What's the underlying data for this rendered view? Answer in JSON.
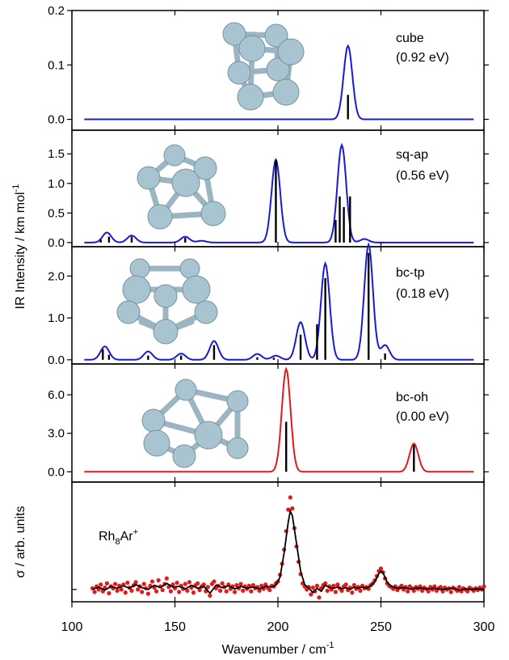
{
  "chart_data": {
    "type": "line",
    "xlabel": "Wavenumber / cm",
    "xlabel_sup": "-1",
    "ylabel_ir": "IR Intensity / km mol",
    "ylabel_ir_sup": "-1",
    "ylabel_exp": "σ / arb. units",
    "xlim": [
      100,
      300
    ],
    "xticks": [
      "100",
      "150",
      "200",
      "250",
      "300"
    ],
    "xtick_values": [
      100,
      150,
      200,
      250,
      300
    ],
    "colors": {
      "calc_blue": "#1a1ad6",
      "calc_red": "#e11a1a",
      "stick": "#000000",
      "exp_points": "#e11a1a",
      "exp_line": "#000000",
      "atom": "#a8c4d0",
      "bond": "#a8c4d0"
    },
    "panels": [
      {
        "id": "cube",
        "label": "cube",
        "energy": "(0.92 eV)",
        "color": "calc_blue",
        "ylim": [
          -0.02,
          0.2
        ],
        "yticks": [
          "0.0",
          "0.1",
          "0.2"
        ],
        "ytick_values": [
          0,
          0.1,
          0.2
        ],
        "sticks": [
          [
            234,
            0.045
          ]
        ],
        "spectrum_fwhm": 5,
        "spectrum_peaks": [
          [
            234,
            0.135
          ]
        ]
      },
      {
        "id": "sq-ap",
        "label": "sq-ap",
        "energy": "(0.56 eV)",
        "color": "calc_blue",
        "ylim": [
          -0.07,
          1.9
        ],
        "yticks": [
          "0.0",
          "0.5",
          "1.0",
          "1.5"
        ],
        "ytick_values": [
          0,
          0.5,
          1.0,
          1.5
        ],
        "sticks": [
          [
            114,
            0.05
          ],
          [
            118,
            0.1
          ],
          [
            129,
            0.1
          ],
          [
            155,
            0.08
          ],
          [
            199,
            1.4
          ],
          [
            228,
            0.38
          ],
          [
            230,
            0.78
          ],
          [
            232,
            0.6
          ],
          [
            235,
            0.78
          ]
        ],
        "spectrum_fwhm": 5,
        "spectrum_peaks": [
          [
            117,
            0.17
          ],
          [
            129,
            0.12
          ],
          [
            155,
            0.1
          ],
          [
            163,
            0.03
          ],
          [
            199,
            1.4
          ],
          [
            231,
            1.65
          ],
          [
            242,
            0.06
          ]
        ]
      },
      {
        "id": "bc-tp",
        "label": "bc-tp",
        "energy": "(0.18 eV)",
        "color": "calc_blue",
        "ylim": [
          -0.1,
          2.7
        ],
        "yticks": [
          "0.0",
          "1.0",
          "2.0"
        ],
        "ytick_values": [
          0,
          1.0,
          2.0
        ],
        "sticks": [
          [
            115,
            0.25
          ],
          [
            118,
            0.12
          ],
          [
            137,
            0.1
          ],
          [
            153,
            0.1
          ],
          [
            169,
            0.35
          ],
          [
            190,
            0.06
          ],
          [
            198,
            0.05
          ],
          [
            211,
            0.6
          ],
          [
            219,
            0.85
          ],
          [
            223,
            1.95
          ],
          [
            244,
            2.55
          ],
          [
            252,
            0.15
          ]
        ],
        "spectrum_fwhm": 5,
        "spectrum_peaks": [
          [
            116,
            0.32
          ],
          [
            137,
            0.2
          ],
          [
            153,
            0.15
          ],
          [
            169,
            0.45
          ],
          [
            190,
            0.14
          ],
          [
            199,
            0.1
          ],
          [
            211,
            0.9
          ],
          [
            223,
            2.3
          ],
          [
            244,
            2.75
          ],
          [
            252,
            0.35
          ]
        ]
      },
      {
        "id": "bc-oh",
        "label": "bc-oh",
        "energy": "(0.00 eV)",
        "color": "calc_red",
        "ylim": [
          -0.8,
          8.4
        ],
        "yticks": [
          "0.0",
          "3.0",
          "6.0"
        ],
        "ytick_values": [
          0,
          3.0,
          6.0
        ],
        "sticks": [
          [
            204,
            3.9
          ],
          [
            266,
            2.1
          ]
        ],
        "spectrum_fwhm": 5,
        "spectrum_peaks": [
          [
            204,
            8.0
          ],
          [
            266,
            2.2
          ]
        ]
      }
    ],
    "experiment": {
      "label_main": "Rh",
      "label_sub": "8",
      "label_mid": "Ar",
      "label_sup": "+",
      "ylim": [
        -0.2,
        1.75
      ],
      "baseline": 0,
      "line_points": [
        [
          110,
          0.0
        ],
        [
          113,
          0.04
        ],
        [
          116,
          -0.01
        ],
        [
          119,
          0.05
        ],
        [
          122,
          0.02
        ],
        [
          125,
          0.06
        ],
        [
          128,
          0.02
        ],
        [
          131,
          0.08
        ],
        [
          134,
          0.03
        ],
        [
          137,
          0.0
        ],
        [
          140,
          0.07
        ],
        [
          143,
          0.03
        ],
        [
          146,
          0.1
        ],
        [
          149,
          0.04
        ],
        [
          152,
          0.05
        ],
        [
          155,
          0.01
        ],
        [
          158,
          0.07
        ],
        [
          161,
          0.02
        ],
        [
          164,
          0.05
        ],
        [
          167,
          -0.06
        ],
        [
          170,
          0.07
        ],
        [
          173,
          0.03
        ],
        [
          176,
          0.06
        ],
        [
          179,
          0.01
        ],
        [
          182,
          0.05
        ],
        [
          185,
          0.02
        ],
        [
          188,
          0.04
        ],
        [
          191,
          0.01
        ],
        [
          194,
          0.05
        ],
        [
          197,
          0.04
        ],
        [
          199,
          0.07
        ],
        [
          201,
          0.2
        ],
        [
          203,
          0.6
        ],
        [
          205,
          1.1
        ],
        [
          206,
          1.28
        ],
        [
          207,
          1.2
        ],
        [
          209,
          0.75
        ],
        [
          211,
          0.3
        ],
        [
          213,
          0.08
        ],
        [
          215,
          0.02
        ],
        [
          217,
          -0.05
        ],
        [
          219,
          0.02
        ],
        [
          221,
          -0.03
        ],
        [
          223,
          0.07
        ],
        [
          225,
          0.03
        ],
        [
          227,
          0.02
        ],
        [
          229,
          0.04
        ],
        [
          231,
          0.01
        ],
        [
          233,
          0.03
        ],
        [
          235,
          0.0
        ],
        [
          237,
          0.04
        ],
        [
          239,
          0.02
        ],
        [
          241,
          0.04
        ],
        [
          243,
          0.02
        ],
        [
          245,
          0.06
        ],
        [
          247,
          0.12
        ],
        [
          249,
          0.26
        ],
        [
          250,
          0.3
        ],
        [
          251,
          0.27
        ],
        [
          253,
          0.12
        ],
        [
          255,
          0.05
        ],
        [
          258,
          0.02
        ],
        [
          261,
          0.03
        ],
        [
          264,
          0.01
        ],
        [
          267,
          0.02
        ],
        [
          270,
          0.02
        ],
        [
          273,
          0.01
        ],
        [
          276,
          0.02
        ],
        [
          279,
          0.0
        ],
        [
          282,
          0.01
        ],
        [
          285,
          0.02
        ],
        [
          288,
          -0.01
        ],
        [
          291,
          0.01
        ],
        [
          294,
          0.0
        ],
        [
          297,
          0.01
        ],
        [
          300,
          0.0
        ]
      ],
      "points": [
        [
          110,
          0.02
        ],
        [
          111,
          -0.04
        ],
        [
          112,
          0.05
        ],
        [
          113,
          0.0
        ],
        [
          114,
          0.08
        ],
        [
          115,
          -0.03
        ],
        [
          116,
          0.03
        ],
        [
          117,
          0.1
        ],
        [
          118,
          -0.06
        ],
        [
          119,
          0.05
        ],
        [
          120,
          0.02
        ],
        [
          121,
          0.09
        ],
        [
          122,
          -0.02
        ],
        [
          123,
          0.06
        ],
        [
          124,
          0.0
        ],
        [
          125,
          0.08
        ],
        [
          126,
          -0.05
        ],
        [
          127,
          0.11
        ],
        [
          128,
          0.03
        ],
        [
          129,
          -0.02
        ],
        [
          130,
          0.07
        ],
        [
          131,
          0.12
        ],
        [
          132,
          0.0
        ],
        [
          133,
          0.05
        ],
        [
          134,
          -0.04
        ],
        [
          135,
          0.09
        ],
        [
          136,
          0.02
        ],
        [
          137,
          -0.07
        ],
        [
          138,
          0.06
        ],
        [
          139,
          0.13
        ],
        [
          140,
          0.03
        ],
        [
          141,
          -0.03
        ],
        [
          142,
          0.15
        ],
        [
          143,
          0.05
        ],
        [
          144,
          -0.01
        ],
        [
          145,
          0.09
        ],
        [
          146,
          0.18
        ],
        [
          147,
          0.04
        ],
        [
          148,
          -0.03
        ],
        [
          149,
          0.08
        ],
        [
          150,
          0.02
        ],
        [
          151,
          0.11
        ],
        [
          152,
          -0.04
        ],
        [
          153,
          0.06
        ],
        [
          154,
          0.01
        ],
        [
          155,
          0.09
        ],
        [
          156,
          -0.02
        ],
        [
          157,
          0.12
        ],
        [
          158,
          0.03
        ],
        [
          159,
          -0.05
        ],
        [
          160,
          0.07
        ],
        [
          161,
          0.1
        ],
        [
          162,
          -0.01
        ],
        [
          163,
          0.05
        ],
        [
          164,
          0.08
        ],
        [
          165,
          -0.03
        ],
        [
          166,
          0.04
        ],
        [
          167,
          -0.1
        ],
        [
          168,
          0.09
        ],
        [
          169,
          0.13
        ],
        [
          170,
          0.02
        ],
        [
          171,
          0.06
        ],
        [
          172,
          -0.02
        ],
        [
          173,
          0.1
        ],
        [
          174,
          0.04
        ],
        [
          175,
          -0.03
        ],
        [
          176,
          0.08
        ],
        [
          177,
          0.01
        ],
        [
          178,
          0.05
        ],
        [
          179,
          -0.04
        ],
        [
          180,
          0.07
        ],
        [
          181,
          0.02
        ],
        [
          182,
          0.09
        ],
        [
          183,
          -0.02
        ],
        [
          184,
          0.05
        ],
        [
          185,
          0.01
        ],
        [
          186,
          0.06
        ],
        [
          187,
          -0.03
        ],
        [
          188,
          0.07
        ],
        [
          189,
          0.02
        ],
        [
          190,
          0.04
        ],
        [
          191,
          -0.02
        ],
        [
          192,
          0.06
        ],
        [
          193,
          0.01
        ],
        [
          194,
          0.08
        ],
        [
          195,
          0.03
        ],
        [
          196,
          -0.01
        ],
        [
          197,
          0.06
        ],
        [
          198,
          0.05
        ],
        [
          199,
          0.1
        ],
        [
          200,
          0.13
        ],
        [
          201,
          0.24
        ],
        [
          202,
          0.42
        ],
        [
          203,
          0.65
        ],
        [
          204,
          0.95
        ],
        [
          205,
          1.3
        ],
        [
          206,
          1.5
        ],
        [
          207,
          1.32
        ],
        [
          208,
          1.0
        ],
        [
          209,
          0.7
        ],
        [
          210,
          0.45
        ],
        [
          211,
          0.25
        ],
        [
          212,
          0.1
        ],
        [
          213,
          0.05
        ],
        [
          214,
          0.0
        ],
        [
          215,
          0.04
        ],
        [
          216,
          -0.08
        ],
        [
          217,
          0.03
        ],
        [
          218,
          -0.03
        ],
        [
          219,
          0.06
        ],
        [
          220,
          -0.13
        ],
        [
          221,
          0.02
        ],
        [
          222,
          0.07
        ],
        [
          223,
          0.1
        ],
        [
          224,
          -0.02
        ],
        [
          225,
          0.05
        ],
        [
          226,
          0.0
        ],
        [
          227,
          0.06
        ],
        [
          228,
          -0.04
        ],
        [
          229,
          0.08
        ],
        [
          230,
          0.02
        ],
        [
          231,
          -0.02
        ],
        [
          232,
          0.05
        ],
        [
          233,
          0.08
        ],
        [
          234,
          -0.01
        ],
        [
          235,
          0.03
        ],
        [
          236,
          -0.05
        ],
        [
          237,
          0.07
        ],
        [
          238,
          0.01
        ],
        [
          239,
          0.04
        ],
        [
          240,
          -0.02
        ],
        [
          241,
          0.06
        ],
        [
          242,
          0.02
        ],
        [
          243,
          0.04
        ],
        [
          244,
          0.01
        ],
        [
          245,
          0.07
        ],
        [
          246,
          0.1
        ],
        [
          247,
          0.15
        ],
        [
          248,
          0.22
        ],
        [
          249,
          0.3
        ],
        [
          250,
          0.34
        ],
        [
          251,
          0.28
        ],
        [
          252,
          0.18
        ],
        [
          253,
          0.1
        ],
        [
          254,
          0.06
        ],
        [
          255,
          0.04
        ],
        [
          256,
          0.01
        ],
        [
          257,
          0.05
        ],
        [
          258,
          -0.01
        ],
        [
          259,
          0.03
        ],
        [
          260,
          0.06
        ],
        [
          261,
          0.0
        ],
        [
          262,
          0.04
        ],
        [
          263,
          -0.03
        ],
        [
          264,
          0.05
        ],
        [
          265,
          0.02
        ],
        [
          266,
          -0.02
        ],
        [
          267,
          0.04
        ],
        [
          268,
          0.01
        ],
        [
          269,
          0.05
        ],
        [
          270,
          -0.02
        ],
        [
          271,
          0.03
        ],
        [
          272,
          0.01
        ],
        [
          273,
          -0.03
        ],
        [
          274,
          0.04
        ],
        [
          275,
          0.0
        ],
        [
          276,
          0.05
        ],
        [
          277,
          -0.02
        ],
        [
          278,
          0.02
        ],
        [
          279,
          0.04
        ],
        [
          280,
          -0.03
        ],
        [
          281,
          0.03
        ],
        [
          282,
          0.0
        ],
        [
          283,
          0.02
        ],
        [
          284,
          -0.04
        ],
        [
          285,
          0.03
        ],
        [
          286,
          0.01
        ],
        [
          287,
          -0.02
        ],
        [
          288,
          0.04
        ],
        [
          289,
          -0.03
        ],
        [
          290,
          0.02
        ],
        [
          291,
          0.0
        ],
        [
          292,
          -0.03
        ],
        [
          293,
          0.03
        ],
        [
          294,
          0.01
        ],
        [
          295,
          -0.02
        ],
        [
          296,
          0.02
        ],
        [
          297,
          -0.01
        ],
        [
          298,
          0.03
        ],
        [
          299,
          0.0
        ],
        [
          300,
          0.05
        ]
      ]
    }
  }
}
